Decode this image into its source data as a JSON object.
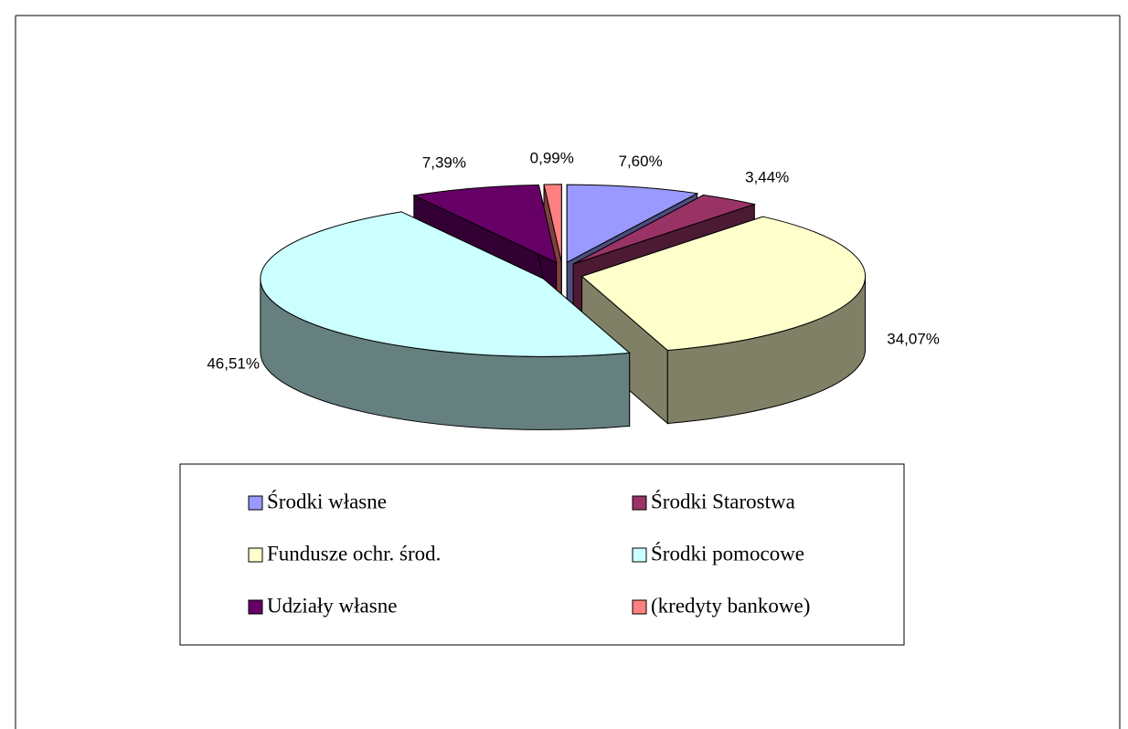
{
  "chart_data": {
    "type": "pie3d",
    "categories": [
      "Środki własne",
      "Środki Starostwa",
      "Fundusze ochr. środ.",
      "Środki pomocowe",
      "Udziały własne",
      "(kredyty bankowe)"
    ],
    "values": [
      7.6,
      3.44,
      34.07,
      46.51,
      7.39,
      0.99
    ],
    "value_labels": [
      "7,60%",
      "3,44%",
      "34,07%",
      "46,51%",
      "7,39%",
      "0,99%"
    ],
    "colors": [
      "#9999ff",
      "#993366",
      "#ffffcc",
      "#ccffff",
      "#660066",
      "#ff8080"
    ],
    "legend": "bottom"
  }
}
